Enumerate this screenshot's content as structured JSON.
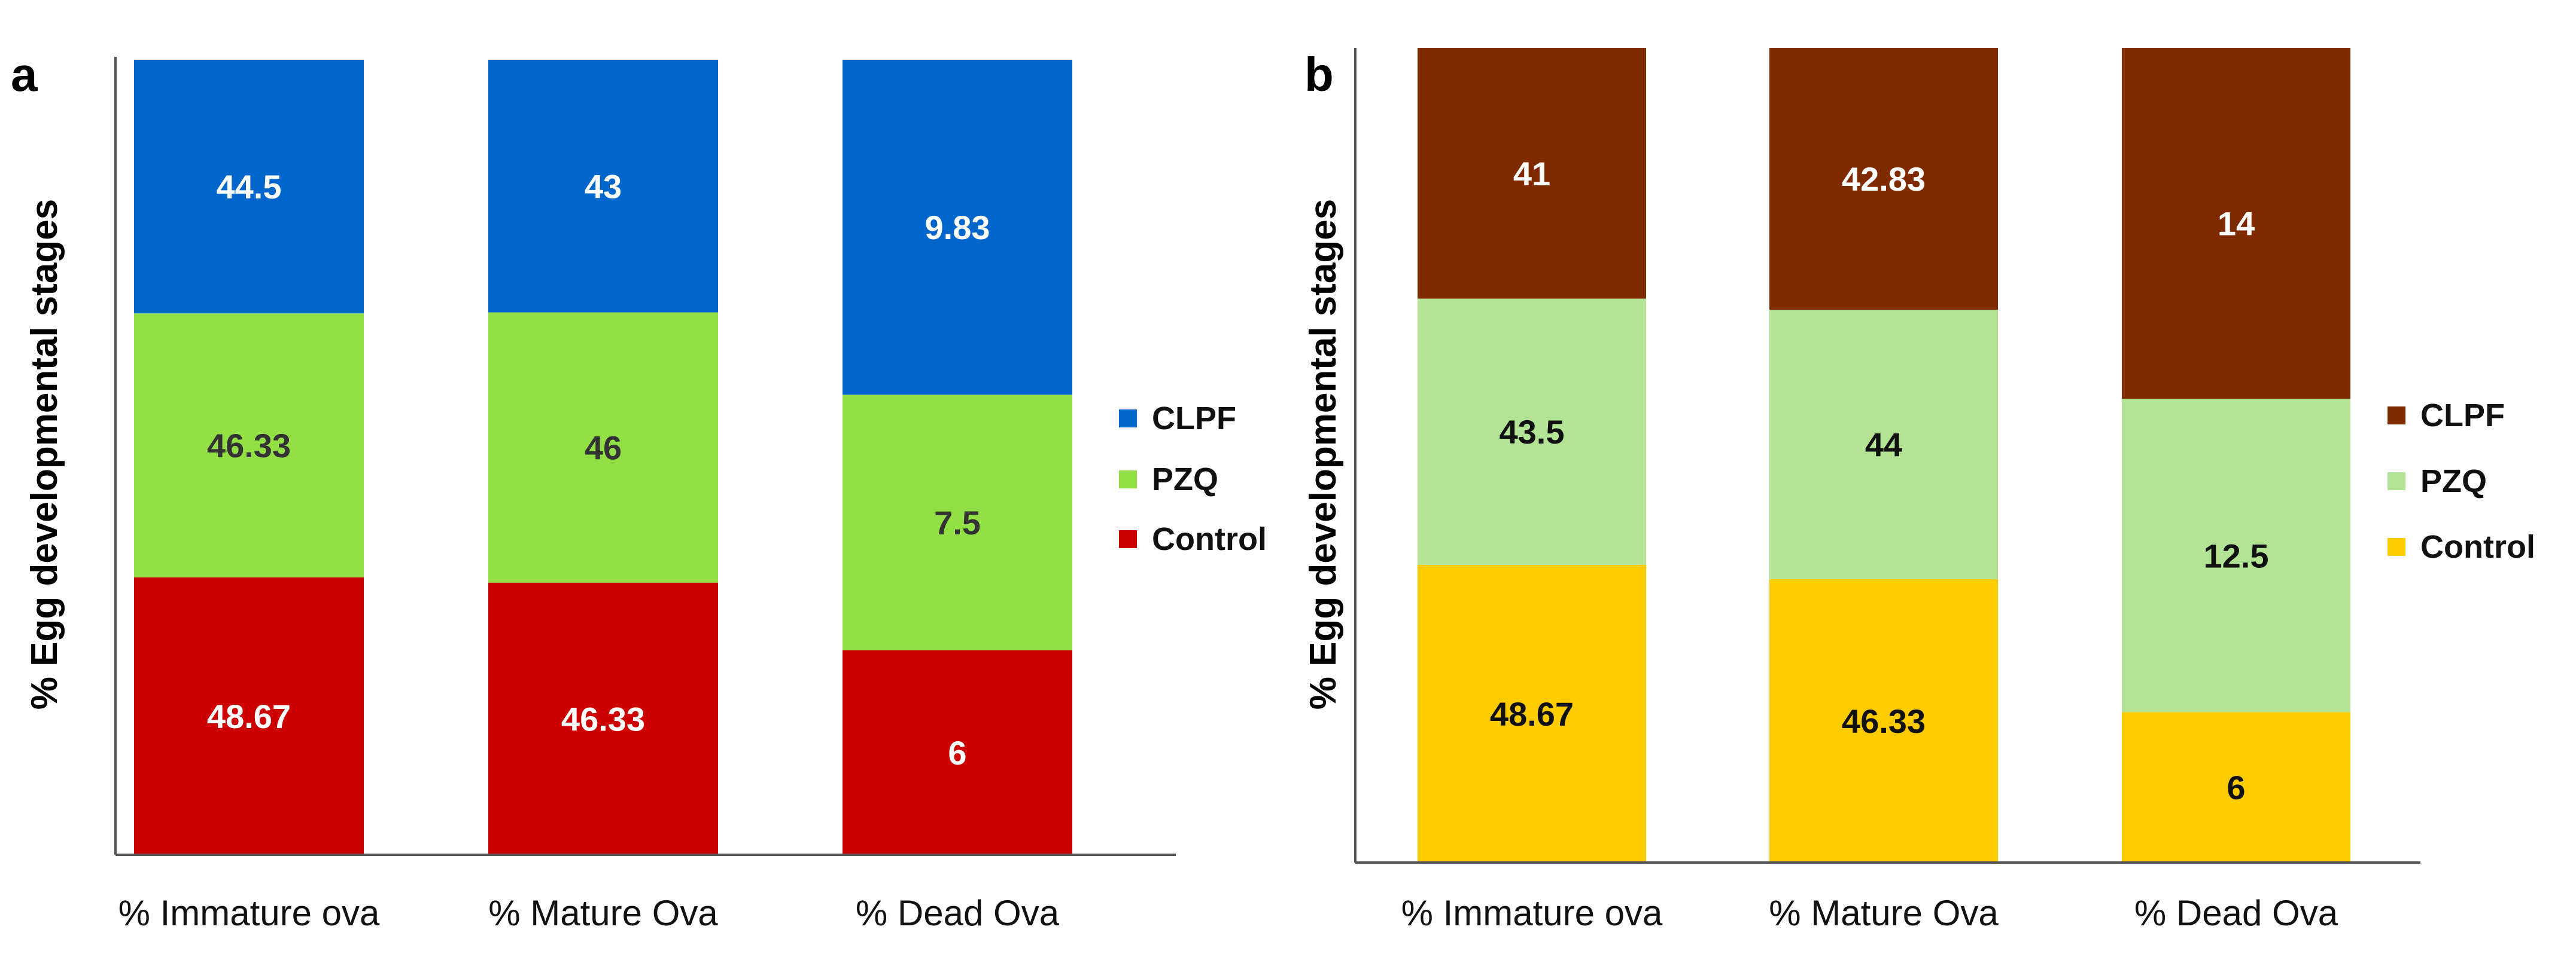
{
  "chart_data": [
    {
      "panel_label": "a",
      "type": "bar",
      "stacked": true,
      "normalized_100": true,
      "title": "",
      "xlabel": "",
      "ylabel": "% Egg developmental stages",
      "categories": [
        "% Immature ova",
        "% Mature Ova",
        "% Dead Ova"
      ],
      "series": [
        {
          "name": "Control",
          "color": "#cc0000",
          "label_color": "#ffffff",
          "values": [
            48.67,
            46.33,
            6
          ],
          "labels": [
            "48.67",
            "46.33",
            "6"
          ]
        },
        {
          "name": "PZQ",
          "color": "#92e046",
          "label_color": "#333333",
          "values": [
            46.33,
            46,
            7.5
          ],
          "labels": [
            "46.33",
            "46",
            "7.5"
          ]
        },
        {
          "name": "CLPF",
          "color": "#0066cc",
          "label_color": "#ffffff",
          "values": [
            44.5,
            43,
            9.83
          ],
          "labels": [
            "44.5",
            "43",
            "9.83"
          ]
        }
      ],
      "legend": [
        "CLPF",
        "PZQ",
        "Control"
      ],
      "legend_position": "right",
      "grid": false
    },
    {
      "panel_label": "b",
      "type": "bar",
      "stacked": true,
      "normalized_100": true,
      "title": "",
      "xlabel": "",
      "ylabel": "% Egg developmental stages",
      "categories": [
        "% Immature ova",
        "% Mature Ova",
        "% Dead Ova"
      ],
      "series": [
        {
          "name": "Control",
          "color": "#ffcc00",
          "label_color": "#111111",
          "values": [
            48.67,
            46.33,
            6
          ],
          "labels": [
            "48.67",
            "46.33",
            "6"
          ]
        },
        {
          "name": "PZQ",
          "color": "#b3e495",
          "label_color": "#111111",
          "values": [
            43.5,
            44,
            12.5
          ],
          "labels": [
            "43.5",
            "44",
            "12.5"
          ]
        },
        {
          "name": "CLPF",
          "color": "#802a00",
          "label_color": "#ffffff",
          "values": [
            41,
            42.83,
            14
          ],
          "labels": [
            "41",
            "42.83",
            "14"
          ]
        }
      ],
      "legend": [
        "CLPF",
        "PZQ",
        "Control"
      ],
      "legend_position": "right",
      "grid": false
    }
  ]
}
